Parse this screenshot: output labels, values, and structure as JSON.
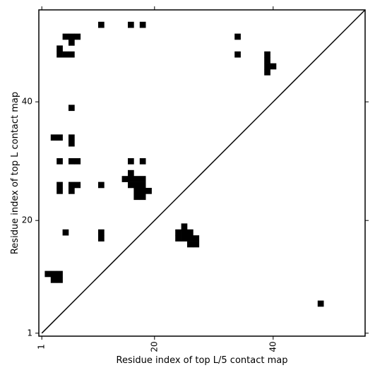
{
  "chart_data": {
    "type": "heatmap",
    "title": "",
    "xlabel": "Residue index of top L/5 contact map",
    "ylabel": "Residue index of top L contact map",
    "xlim": [
      0.5,
      55.5
    ],
    "ylim": [
      0.5,
      55.5
    ],
    "xticks": [
      1,
      20,
      40
    ],
    "yticks": [
      1,
      20,
      40
    ],
    "diagonal": true,
    "cell_color": "#000000",
    "background_color": "#ffffff",
    "upper_triangle_cells": [
      [
        11,
        53
      ],
      [
        16,
        53
      ],
      [
        18,
        53
      ],
      [
        5,
        51
      ],
      [
        6,
        51
      ],
      [
        7,
        51
      ],
      [
        34,
        51
      ],
      [
        6,
        50
      ],
      [
        4,
        49
      ],
      [
        4,
        48
      ],
      [
        5,
        48
      ],
      [
        6,
        48
      ],
      [
        34,
        48
      ],
      [
        39,
        48
      ],
      [
        39,
        47
      ],
      [
        39,
        46
      ],
      [
        40,
        46
      ],
      [
        39,
        45
      ],
      [
        6,
        39
      ],
      [
        3,
        34
      ],
      [
        4,
        34
      ],
      [
        6,
        34
      ],
      [
        6,
        33
      ],
      [
        4,
        30
      ],
      [
        6,
        30
      ],
      [
        7,
        30
      ],
      [
        16,
        30
      ],
      [
        18,
        30
      ],
      [
        16,
        28
      ],
      [
        15,
        27
      ],
      [
        16,
        27
      ],
      [
        17,
        27
      ],
      [
        18,
        27
      ],
      [
        4,
        26
      ],
      [
        6,
        26
      ],
      [
        7,
        26
      ],
      [
        11,
        26
      ],
      [
        16,
        26
      ],
      [
        17,
        26
      ],
      [
        18,
        26
      ],
      [
        4,
        25
      ],
      [
        6,
        25
      ],
      [
        17,
        25
      ],
      [
        18,
        25
      ],
      [
        19,
        25
      ],
      [
        17,
        24
      ],
      [
        18,
        24
      ]
    ],
    "lower_triangle_cells": [
      [
        25,
        19
      ],
      [
        5,
        18
      ],
      [
        11,
        18
      ],
      [
        24,
        18
      ],
      [
        25,
        18
      ],
      [
        26,
        18
      ],
      [
        11,
        17
      ],
      [
        24,
        17
      ],
      [
        25,
        17
      ],
      [
        26,
        17
      ],
      [
        27,
        17
      ],
      [
        26,
        16
      ],
      [
        27,
        16
      ],
      [
        2,
        11
      ],
      [
        3,
        11
      ],
      [
        4,
        11
      ],
      [
        3,
        10
      ],
      [
        4,
        10
      ],
      [
        48,
        6
      ]
    ]
  }
}
